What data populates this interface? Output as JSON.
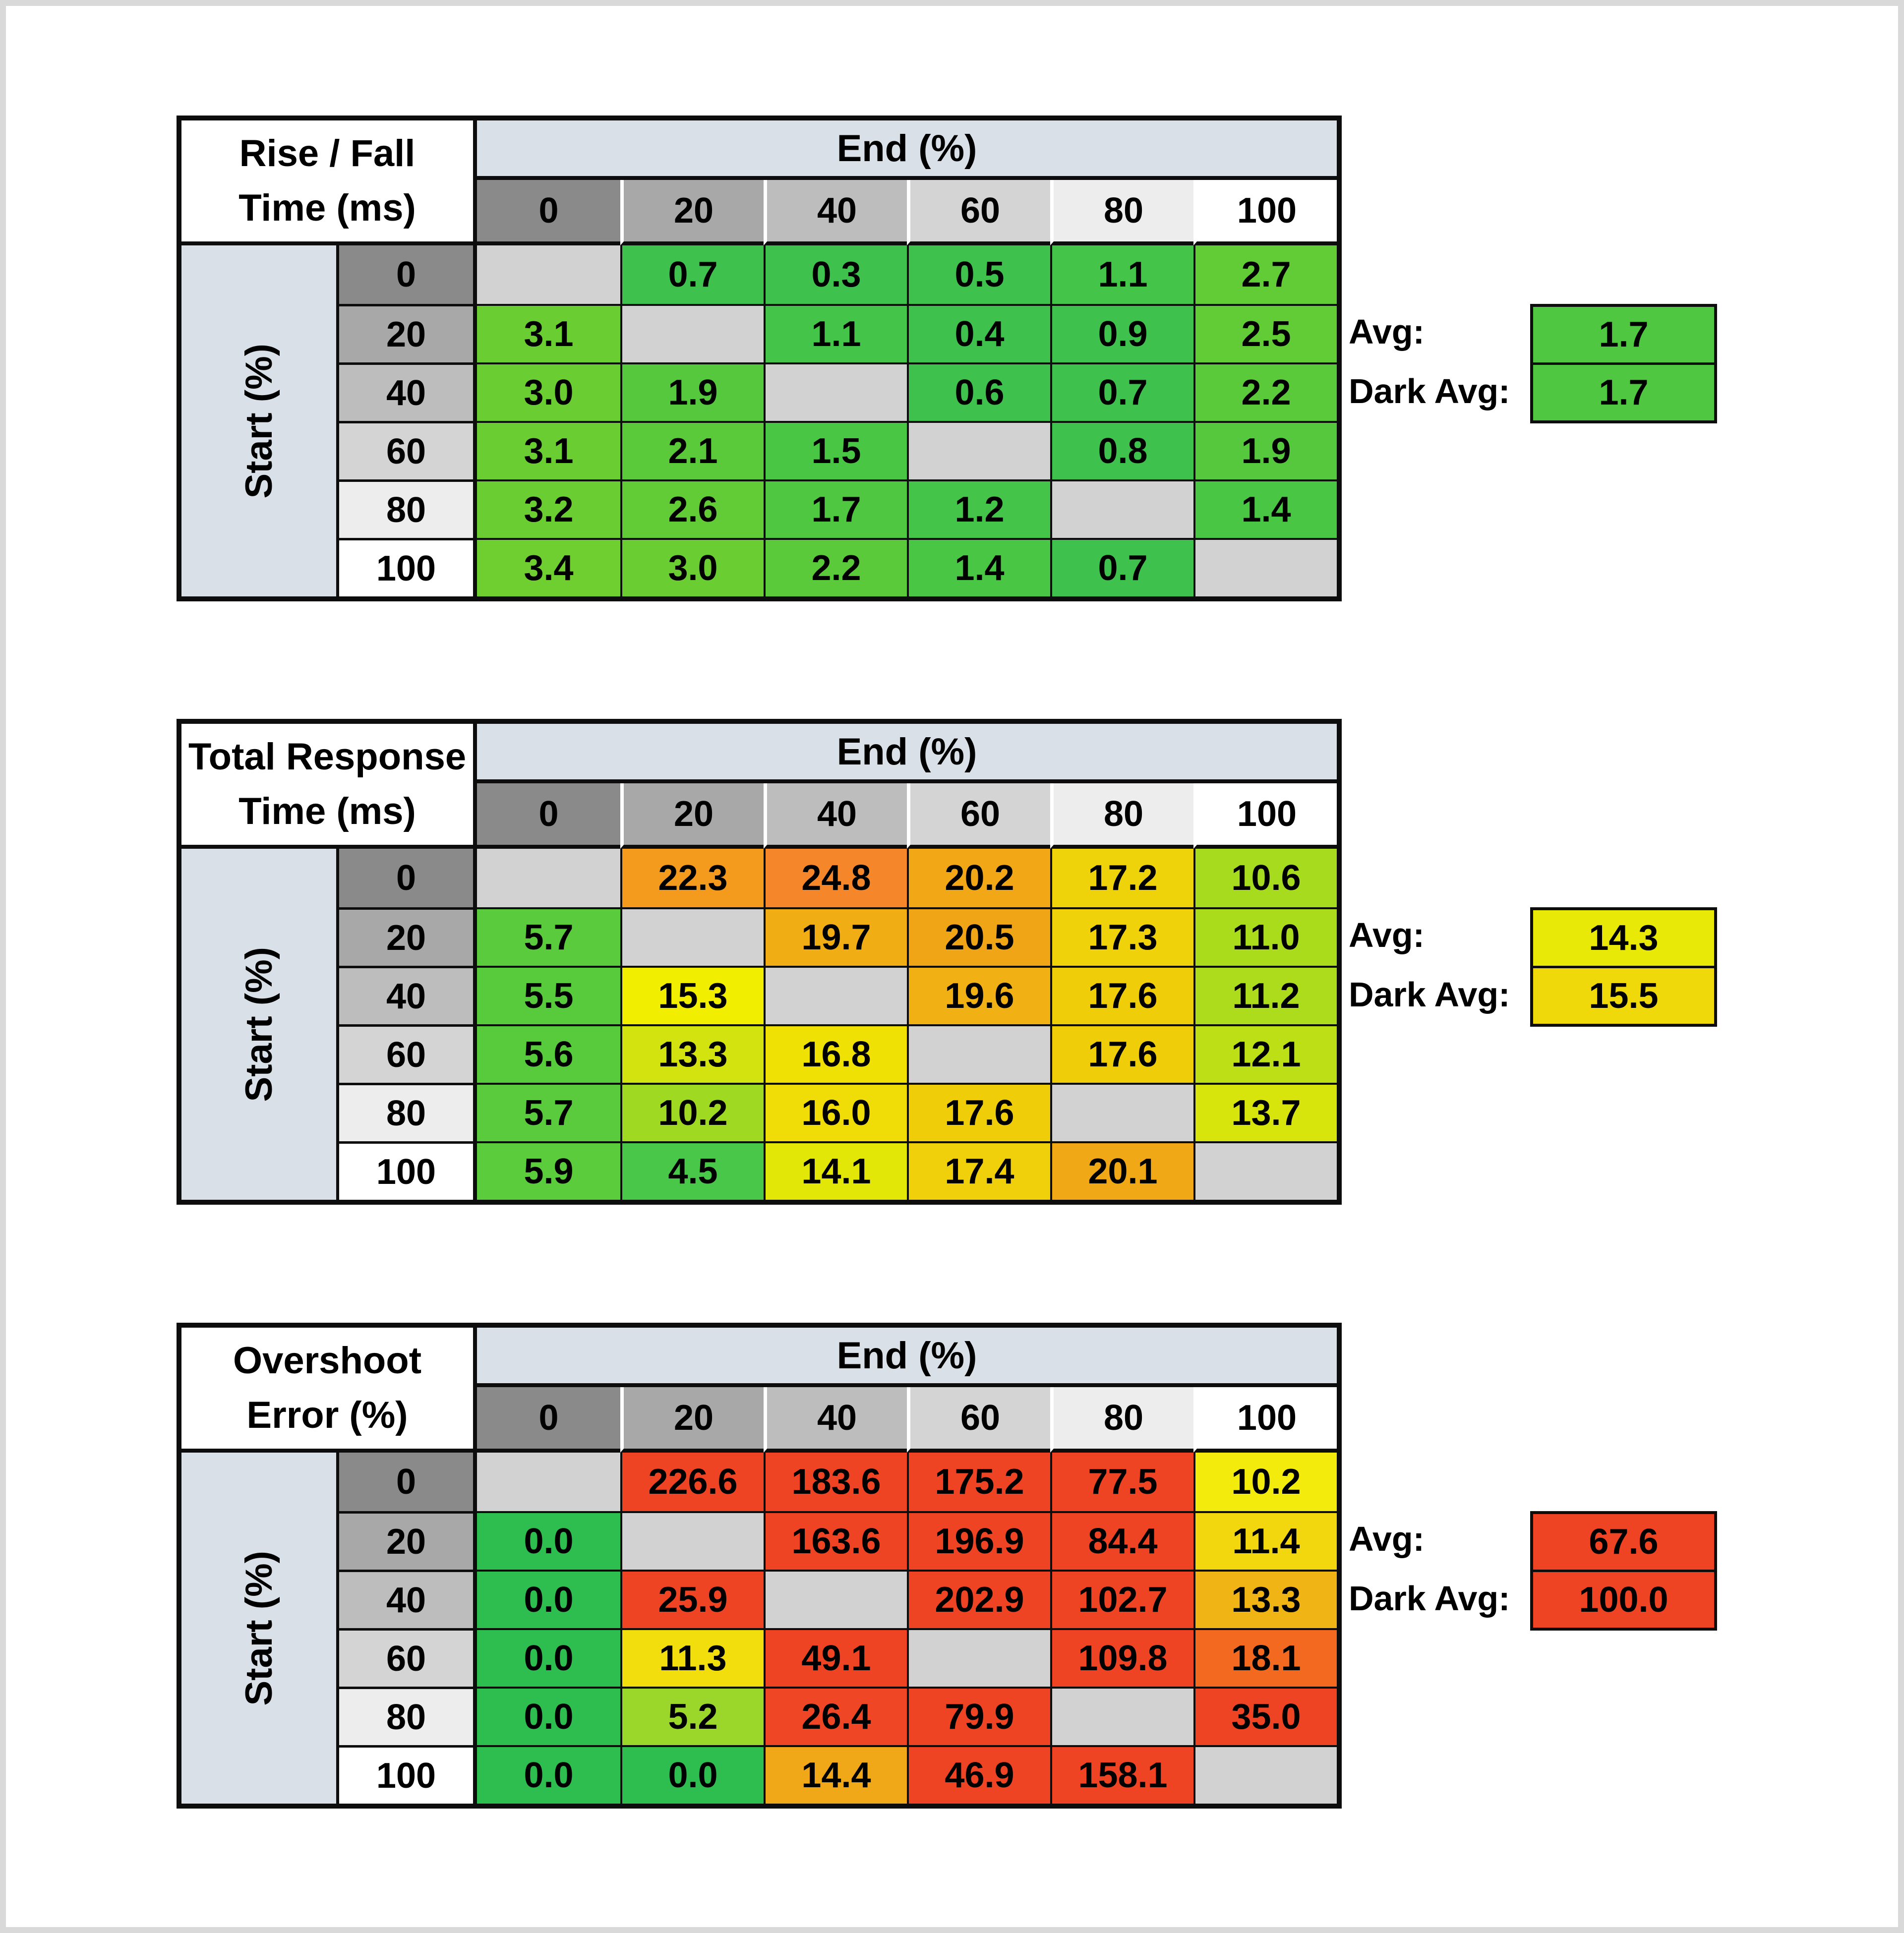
{
  "page": {
    "background": "#ffffff",
    "frame_color": "#d9d9d9"
  },
  "shared": {
    "x_axis_label": "End (%)",
    "y_axis_label": "Start (%)",
    "axis_ticks": [
      "0",
      "20",
      "40",
      "60",
      "80",
      "100"
    ],
    "header_shades": [
      "#8a8a8a",
      "#a8a8a8",
      "#bdbdbd",
      "#d4d4d4",
      "#ededed",
      "#ffffff"
    ],
    "band_color": "#d9e0e8",
    "blank_cell_color": "#d2d2d2",
    "avg_label": "Avg:",
    "dark_avg_label": "Dark Avg:"
  },
  "chart_data": [
    {
      "type": "heatmap",
      "title_lines": [
        "Rise / Fall",
        "Time (ms)"
      ],
      "x_label": "End (%)",
      "y_label": "Start (%)",
      "x": [
        0,
        20,
        40,
        60,
        80,
        100
      ],
      "y": [
        0,
        20,
        40,
        60,
        80,
        100
      ],
      "values": [
        [
          null,
          0.7,
          0.3,
          0.5,
          1.1,
          2.7
        ],
        [
          3.1,
          null,
          1.1,
          0.4,
          0.9,
          2.5
        ],
        [
          3.0,
          1.9,
          null,
          0.6,
          0.7,
          2.2
        ],
        [
          3.1,
          2.1,
          1.5,
          null,
          0.8,
          1.9
        ],
        [
          3.2,
          2.6,
          1.7,
          1.2,
          null,
          1.4
        ],
        [
          3.4,
          3.0,
          2.2,
          1.4,
          0.7,
          null
        ]
      ],
      "colors": [
        [
          null,
          "#3ec24d",
          "#3ec24d",
          "#3ec24d",
          "#44c448",
          "#62cc37"
        ],
        [
          "#6ace33",
          null,
          "#44c448",
          "#3ec24d",
          "#3ec24d",
          "#62cc37"
        ],
        [
          "#6ace33",
          "#55c83e",
          null,
          "#3ec24d",
          "#3ec24d",
          "#5aca3b"
        ],
        [
          "#6ace33",
          "#5aca3b",
          "#4ac645",
          null,
          "#3ec24d",
          "#55c83e"
        ],
        [
          "#6ace33",
          "#62cc37",
          "#50c741",
          "#44c448",
          null,
          "#4ac645"
        ],
        [
          "#70cf30",
          "#6ace33",
          "#5aca3b",
          "#4ac645",
          "#3ec24d",
          null
        ]
      ],
      "avg": {
        "label": "Avg:",
        "value": "1.7",
        "color": "#50c741"
      },
      "dark_avg": {
        "label": "Dark Avg:",
        "value": "1.7",
        "color": "#50c741"
      }
    },
    {
      "type": "heatmap",
      "title_lines": [
        "Total Response",
        "Time (ms)"
      ],
      "x_label": "End (%)",
      "y_label": "Start (%)",
      "x": [
        0,
        20,
        40,
        60,
        80,
        100
      ],
      "y": [
        0,
        20,
        40,
        60,
        80,
        100
      ],
      "values": [
        [
          null,
          22.3,
          24.8,
          20.2,
          17.2,
          10.6
        ],
        [
          5.7,
          null,
          19.7,
          20.5,
          17.3,
          11.0
        ],
        [
          5.5,
          15.3,
          null,
          19.6,
          17.6,
          11.2
        ],
        [
          5.6,
          13.3,
          16.8,
          null,
          17.6,
          12.1
        ],
        [
          5.7,
          10.2,
          16.0,
          17.6,
          null,
          13.7
        ],
        [
          5.9,
          4.5,
          14.1,
          17.4,
          20.1,
          null
        ]
      ],
      "colors": [
        [
          null,
          "#f49a1c",
          "#f5872a",
          "#f1a716",
          "#efd30a",
          "#a6db1e"
        ],
        [
          "#59cb3c",
          null,
          "#f1ae14",
          "#f0a517",
          "#efd20a",
          "#abdc1c"
        ],
        [
          "#58cb3d",
          "#f2ee00",
          null,
          "#f1b013",
          "#efce09",
          "#addc1c"
        ],
        [
          "#58cb3d",
          "#d2e30f",
          "#efe104",
          null,
          "#efce09",
          "#bcdf16"
        ],
        [
          "#59cb3c",
          "#a0d922",
          "#f0dc07",
          "#efce09",
          null,
          "#d8e50c"
        ],
        [
          "#5bcc3b",
          "#49c748",
          "#e2e708",
          "#efd00a",
          "#f1a816",
          null
        ]
      ],
      "avg": {
        "label": "Avg:",
        "value": "14.3",
        "color": "#e9e907"
      },
      "dark_avg": {
        "label": "Dark Avg:",
        "value": "15.5",
        "color": "#efd90b"
      }
    },
    {
      "type": "heatmap",
      "title_lines": [
        "Overshoot",
        "Error (%)"
      ],
      "x_label": "End (%)",
      "y_label": "Start (%)",
      "x": [
        0,
        20,
        40,
        60,
        80,
        100
      ],
      "y": [
        0,
        20,
        40,
        60,
        80,
        100
      ],
      "values": [
        [
          null,
          226.6,
          183.6,
          175.2,
          77.5,
          10.2
        ],
        [
          0.0,
          null,
          163.6,
          196.9,
          84.4,
          11.4
        ],
        [
          0.0,
          25.9,
          null,
          202.9,
          102.7,
          13.3
        ],
        [
          0.0,
          11.3,
          49.1,
          null,
          109.8,
          18.1
        ],
        [
          0.0,
          5.2,
          26.4,
          79.9,
          null,
          35.0
        ],
        [
          0.0,
          0.0,
          14.4,
          46.9,
          158.1,
          null
        ]
      ],
      "colors": [
        [
          null,
          "#ef4423",
          "#ef4423",
          "#ef4423",
          "#ef4423",
          "#f3eb0b"
        ],
        [
          "#2ebe50",
          null,
          "#ef4423",
          "#ef4423",
          "#ef4423",
          "#f2d70e"
        ],
        [
          "#2ebe50",
          "#ef4423",
          null,
          "#ef4423",
          "#ef4423",
          "#f0b414"
        ],
        [
          "#2ebe50",
          "#f2de0c",
          "#ef4423",
          null,
          "#ef4423",
          "#f3691f"
        ],
        [
          "#2ebe50",
          "#9bd62a",
          "#ef4625",
          "#ef4423",
          null,
          "#ef4423"
        ],
        [
          "#2ebe50",
          "#2ebe50",
          "#f0a818",
          "#ef4423",
          "#ef4423",
          null
        ]
      ],
      "avg": {
        "label": "Avg:",
        "value": "67.6",
        "color": "#ef4423"
      },
      "dark_avg": {
        "label": "Dark Avg:",
        "value": "100.0",
        "color": "#ef4423"
      }
    }
  ]
}
